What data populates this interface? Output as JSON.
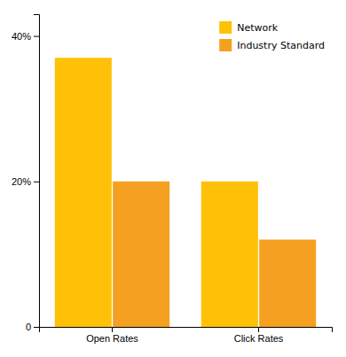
{
  "chart_data": {
    "type": "bar",
    "categories": [
      "Open Rates",
      "Click Rates"
    ],
    "series": [
      {
        "name": "Network",
        "color": "#FFC107",
        "values": [
          37,
          20
        ]
      },
      {
        "name": "Industry Standard",
        "color": "#F5A020",
        "values": [
          20,
          12
        ]
      }
    ],
    "ylim": [
      0,
      43
    ],
    "yticks": [
      0,
      {
        "value": 20,
        "label": "20%"
      },
      {
        "value": 40,
        "label": "40%"
      }
    ],
    "grid": false,
    "legend": "upper right"
  }
}
